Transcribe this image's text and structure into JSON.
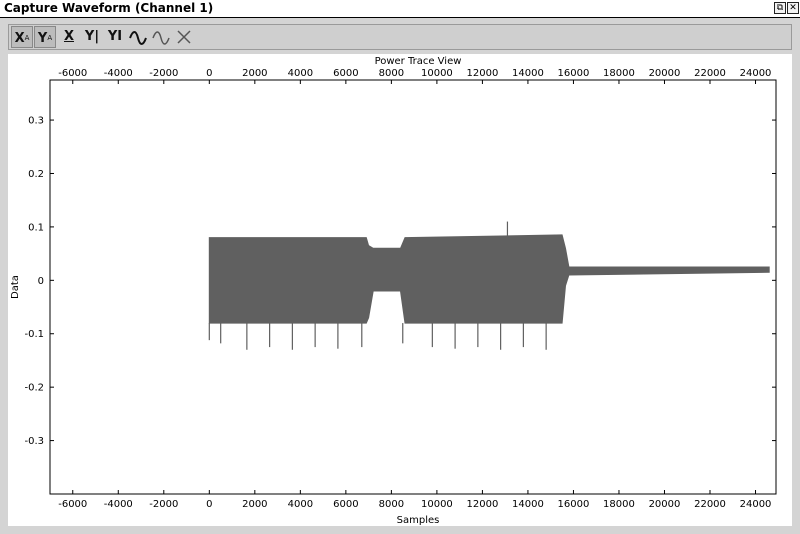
{
  "window": {
    "title": "Capture Waveform (Channel 1)",
    "restore_glyph": "⧉",
    "close_glyph": "✕"
  },
  "toolbar": {
    "buttons": [
      {
        "name": "x-autoscale",
        "label": "X",
        "sup": "A",
        "pressed": true
      },
      {
        "name": "y-autoscale",
        "label": "Y",
        "sup": "A",
        "pressed": true
      },
      {
        "name": "x-lock",
        "label": "X",
        "pressed": false
      },
      {
        "name": "y-lock",
        "label": "Y|",
        "pressed": false
      },
      {
        "name": "y-zoom",
        "label": "YI",
        "pressed": false
      },
      {
        "name": "trace-wave",
        "icon": "wave-icon",
        "pressed": false
      },
      {
        "name": "trace-wave-alt",
        "icon": "wave-icon",
        "pressed": false
      },
      {
        "name": "clear",
        "icon": "cross-icon",
        "pressed": false
      }
    ]
  },
  "chart_data": {
    "type": "line",
    "title": "Power Trace View",
    "xlabel": "Samples",
    "ylabel": "Data",
    "xlim": [
      -7000,
      24900
    ],
    "ylim": [
      -0.4,
      0.375
    ],
    "xticks": [
      -6000,
      -4000,
      -2000,
      0,
      2000,
      4000,
      6000,
      8000,
      10000,
      12000,
      14000,
      16000,
      18000,
      20000,
      22000,
      24000
    ],
    "yticks": [
      0.3,
      0.2,
      0.1,
      0,
      -0.1,
      -0.2,
      -0.3
    ],
    "ytick_labels": [
      "0.3",
      "0.2",
      "0.1",
      "0",
      "-0.1",
      "-0.2",
      "-0.3"
    ],
    "grid": false,
    "color": "#606060",
    "envelope": [
      {
        "x": 0,
        "upper": 0.08,
        "lower": -0.08
      },
      {
        "x": 6900,
        "upper": 0.08,
        "lower": -0.08
      },
      {
        "x": 7000,
        "upper": 0.065,
        "lower": -0.07
      },
      {
        "x": 7200,
        "upper": 0.06,
        "lower": -0.02
      },
      {
        "x": 8400,
        "upper": 0.06,
        "lower": -0.02
      },
      {
        "x": 8600,
        "upper": 0.08,
        "lower": -0.08
      },
      {
        "x": 15500,
        "upper": 0.085,
        "lower": -0.08
      },
      {
        "x": 15650,
        "upper": 0.06,
        "lower": -0.01
      },
      {
        "x": 15800,
        "upper": 0.025,
        "lower": 0.01
      },
      {
        "x": 24600,
        "upper": 0.025,
        "lower": 0.015
      }
    ],
    "spikes_down": [
      {
        "x": 0,
        "y": -0.112
      },
      {
        "x": 500,
        "y": -0.118
      },
      {
        "x": 1650,
        "y": -0.13
      },
      {
        "x": 2650,
        "y": -0.125
      },
      {
        "x": 3650,
        "y": -0.13
      },
      {
        "x": 4650,
        "y": -0.125
      },
      {
        "x": 5650,
        "y": -0.128
      },
      {
        "x": 6700,
        "y": -0.125
      },
      {
        "x": 8500,
        "y": -0.118
      },
      {
        "x": 9800,
        "y": -0.125
      },
      {
        "x": 10800,
        "y": -0.128
      },
      {
        "x": 11800,
        "y": -0.125
      },
      {
        "x": 12800,
        "y": -0.13
      },
      {
        "x": 13800,
        "y": -0.125
      },
      {
        "x": 14800,
        "y": -0.13
      }
    ],
    "spikes_up": [
      {
        "x": 13100,
        "y": 0.11
      }
    ]
  }
}
